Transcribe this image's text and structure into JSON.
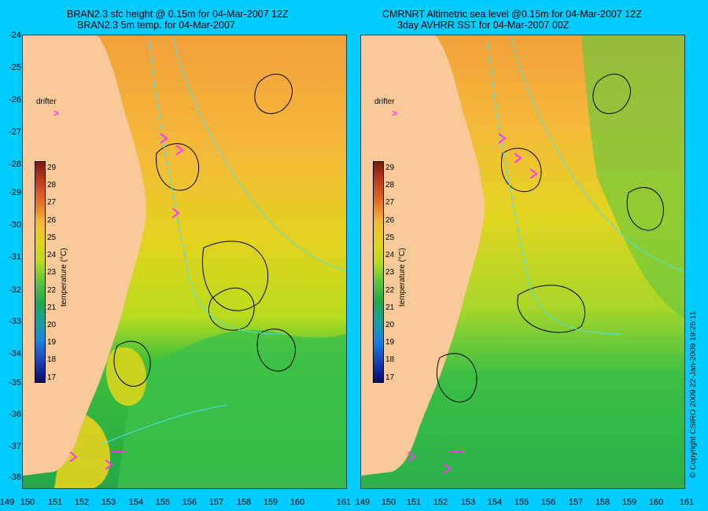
{
  "left_panel": {
    "title_line1": "BRAN2.3 sfc height @ 0.15m for 04-Mar-2007 12Z",
    "title_line2": "BRAN2.3 5m temp. for 04-Mar-2007"
  },
  "right_panel": {
    "title_line1": "CMRNRT Altimetric sea level  @0.15m  for 04-Mar-2007 12Z",
    "title_line2": "3day AVHRR SST for 04-Mar-2007 00Z"
  },
  "y_axis_labels": [
    "-24",
    "-25",
    "-26",
    "-27",
    "-28",
    "-29",
    "-30",
    "-31",
    "-32",
    "-33",
    "-34",
    "-35",
    "-36",
    "-37",
    "-38"
  ],
  "x_axis_labels_left": [
    "149",
    "150",
    "151",
    "152",
    "153",
    "154",
    "155",
    "156",
    "157",
    "158",
    "159",
    "160",
    "161"
  ],
  "x_axis_labels_right": [
    "149",
    "150",
    "151",
    "152",
    "153",
    "154",
    "155",
    "156",
    "157",
    "158",
    "159",
    "160",
    "161"
  ],
  "colorbar": {
    "ticks": [
      "29",
      "28",
      "27",
      "26",
      "25",
      "24",
      "23",
      "22",
      "21",
      "20",
      "19",
      "18",
      "17"
    ],
    "unit_label": "temperature (°C)",
    "range": [
      17,
      29
    ]
  },
  "drifter_label": "drifter",
  "drifter_symbol": ">",
  "copyright": "© Copyright CSIRO 2009   22-Jan-2009 19:25:11",
  "colors": {
    "background": "#00ccff",
    "land": "#f9c99a",
    "contour_ssh": "#000000",
    "contour_cyan": "#4de0e8",
    "drifter": "#ff33ff"
  }
}
